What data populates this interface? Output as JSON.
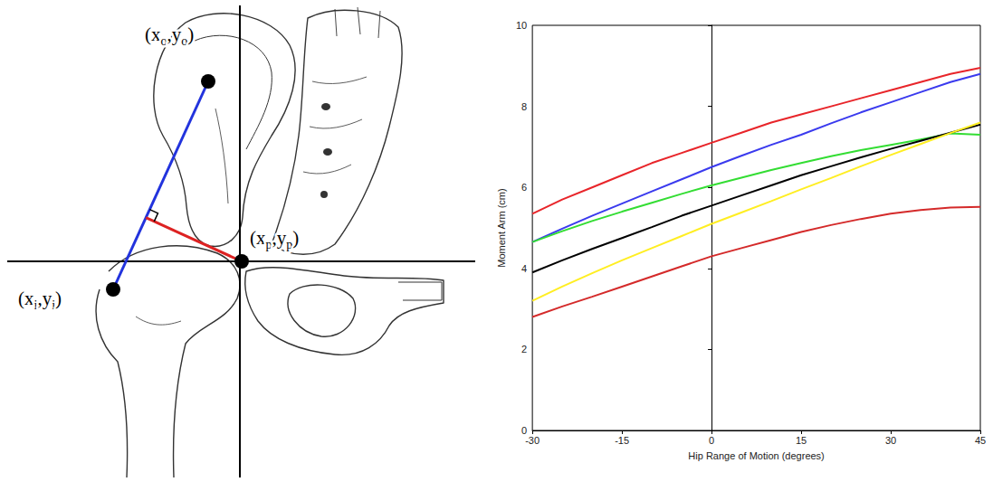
{
  "diagram": {
    "points": [
      {
        "label_parts": [
          "(x",
          "o",
          ",y",
          "o",
          ")"
        ]
      },
      {
        "label_parts": [
          "(x",
          "p",
          ",y",
          "p",
          ")"
        ]
      },
      {
        "label_parts": [
          "(x",
          "i",
          ",y",
          "i",
          ")"
        ]
      }
    ]
  },
  "chart_data": {
    "type": "line",
    "x_label": "Hip Range of Motion (degrees)",
    "y_label": "Moment Arm (cm)",
    "x": [
      -30,
      -25,
      -20,
      -15,
      -10,
      -5,
      0,
      5,
      10,
      15,
      20,
      25,
      30,
      35,
      40,
      45
    ],
    "xlim": [
      -30,
      45
    ],
    "xticks": [
      -30,
      -15,
      0,
      15,
      30,
      45
    ],
    "ylim": [
      0,
      10
    ],
    "yticks": [
      0,
      2,
      4,
      6,
      8,
      10
    ],
    "grid": false,
    "series": [
      {
        "color": "#e8252a",
        "values": [
          5.35,
          5.7,
          6.0,
          6.3,
          6.6,
          6.85,
          7.1,
          7.35,
          7.6,
          7.8,
          8.0,
          8.2,
          8.4,
          8.6,
          8.8,
          8.95
        ]
      },
      {
        "color": "#3a3aee",
        "values": [
          4.65,
          4.98,
          5.3,
          5.6,
          5.9,
          6.2,
          6.5,
          6.78,
          7.05,
          7.3,
          7.58,
          7.85,
          8.1,
          8.35,
          8.6,
          8.8
        ]
      },
      {
        "color": "#33dd33",
        "values": [
          4.65,
          4.92,
          5.17,
          5.4,
          5.62,
          5.84,
          6.05,
          6.24,
          6.43,
          6.6,
          6.77,
          6.92,
          7.05,
          7.18,
          7.33,
          7.3
        ]
      },
      {
        "color": "#000000",
        "values": [
          3.9,
          4.2,
          4.48,
          4.75,
          5.02,
          5.3,
          5.55,
          5.8,
          6.05,
          6.3,
          6.52,
          6.74,
          6.95,
          7.15,
          7.35,
          7.55
        ]
      },
      {
        "color": "#ffee22",
        "values": [
          3.2,
          3.55,
          3.88,
          4.2,
          4.5,
          4.8,
          5.1,
          5.38,
          5.66,
          5.95,
          6.23,
          6.52,
          6.8,
          7.07,
          7.34,
          7.6
        ]
      },
      {
        "color": "#d42a2a",
        "values": [
          2.8,
          3.06,
          3.3,
          3.55,
          3.8,
          4.05,
          4.3,
          4.5,
          4.7,
          4.9,
          5.07,
          5.22,
          5.35,
          5.44,
          5.5,
          5.52
        ]
      }
    ]
  }
}
